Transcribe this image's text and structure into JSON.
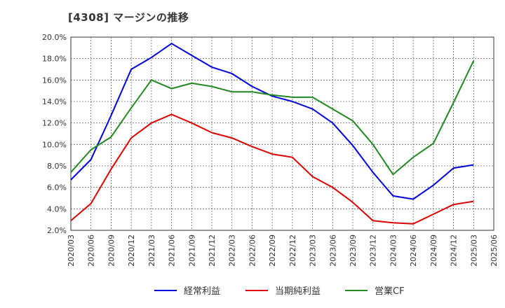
{
  "chart_data": {
    "type": "line",
    "title": "[4308]  マージンの推移",
    "xlabel": "",
    "ylabel": "",
    "x": [
      "2020/03",
      "2020/06",
      "2020/09",
      "2020/12",
      "2021/03",
      "2021/06",
      "2021/09",
      "2021/12",
      "2022/03",
      "2022/06",
      "2022/09",
      "2022/12",
      "2023/03",
      "2023/06",
      "2023/09",
      "2023/12",
      "2024/03",
      "2024/06",
      "2024/09",
      "2024/12",
      "2025/03",
      "2025/06"
    ],
    "y_ticks": [
      "2.0%",
      "4.0%",
      "6.0%",
      "8.0%",
      "10.0%",
      "12.0%",
      "14.0%",
      "16.0%",
      "18.0%",
      "20.0%"
    ],
    "ylim": [
      2.0,
      20.0
    ],
    "grid": true,
    "legend_position": "bottom",
    "series": [
      {
        "name": "経常利益",
        "color": "#0000dd",
        "values": [
          6.7,
          8.6,
          12.7,
          17.0,
          18.1,
          19.4,
          18.3,
          17.2,
          16.6,
          15.4,
          14.5,
          14.0,
          13.3,
          12.0,
          9.9,
          7.4,
          5.2,
          4.9,
          6.2,
          7.8,
          8.1,
          null
        ]
      },
      {
        "name": "当期純利益",
        "color": "#dd0000",
        "values": [
          2.9,
          4.5,
          7.7,
          10.6,
          12.0,
          12.8,
          12.0,
          11.1,
          10.6,
          9.8,
          9.1,
          8.8,
          7.0,
          6.0,
          4.6,
          2.9,
          2.7,
          2.6,
          3.5,
          4.4,
          4.7,
          null
        ]
      },
      {
        "name": "営業CF",
        "color": "#228822",
        "values": [
          7.4,
          9.5,
          10.7,
          13.4,
          16.0,
          15.2,
          15.7,
          15.4,
          14.9,
          14.9,
          14.6,
          14.4,
          14.4,
          13.3,
          12.2,
          10.0,
          7.2,
          8.8,
          10.1,
          13.9,
          17.8,
          null
        ]
      }
    ]
  }
}
